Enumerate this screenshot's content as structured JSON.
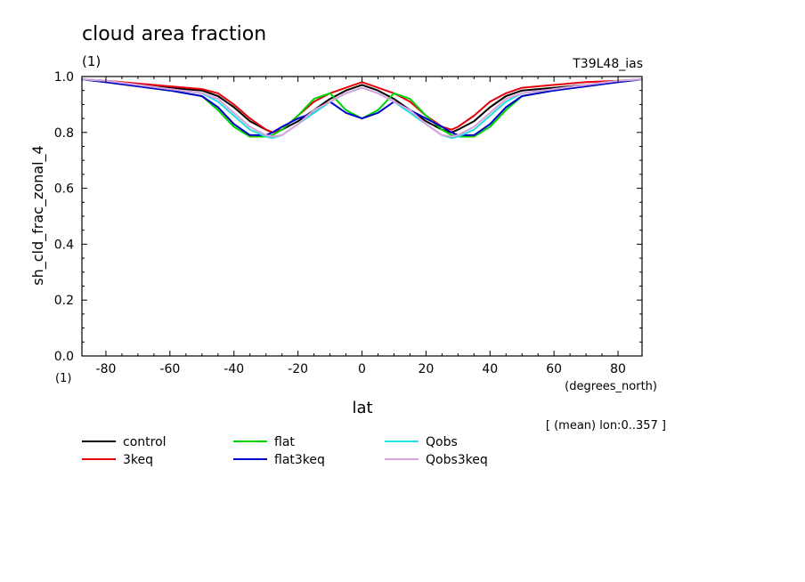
{
  "chart_data": {
    "type": "line",
    "title": "cloud area fraction",
    "units_label": "(1)",
    "run_label": "T39L48_ias",
    "xlabel": "lat",
    "x_units": "(degrees_north)",
    "ylabel": "sh_cld_frac_zonal_4",
    "y_units": "(1)",
    "footnote": "[ (mean) lon:0..357 ]",
    "xlim": [
      -87.5,
      87.5
    ],
    "ylim": [
      0.0,
      1.0
    ],
    "x_ticks": [
      -80,
      -60,
      -40,
      -20,
      0,
      20,
      40,
      60,
      80
    ],
    "x_tick_labels": [
      "-80",
      "-60",
      "-40",
      "-20",
      "0",
      "20",
      "40",
      "60",
      "80"
    ],
    "y_ticks": [
      0.0,
      0.2,
      0.4,
      0.6,
      0.8,
      1.0
    ],
    "y_tick_labels": [
      "0.0",
      "0.2",
      "0.4",
      "0.6",
      "0.8",
      "1.0"
    ],
    "legend_placement": "bottom",
    "x": [
      -87.5,
      -80,
      -70,
      -60,
      -50,
      -45,
      -40,
      -35,
      -30,
      -28,
      -25,
      -20,
      -15,
      -10,
      -5,
      0,
      5,
      10,
      15,
      20,
      25,
      28,
      30,
      35,
      40,
      45,
      50,
      60,
      70,
      80,
      87.5
    ],
    "series": [
      {
        "name": "control",
        "color": "#000000",
        "values": [
          0.99,
          0.98,
          0.97,
          0.96,
          0.95,
          0.93,
          0.89,
          0.84,
          0.81,
          0.8,
          0.81,
          0.84,
          0.88,
          0.92,
          0.95,
          0.97,
          0.95,
          0.92,
          0.88,
          0.84,
          0.81,
          0.8,
          0.81,
          0.84,
          0.89,
          0.93,
          0.95,
          0.96,
          0.97,
          0.98,
          0.99
        ]
      },
      {
        "name": "3keq",
        "color": "#e8000b",
        "values": [
          0.99,
          0.985,
          0.975,
          0.965,
          0.955,
          0.94,
          0.9,
          0.85,
          0.81,
          0.8,
          0.81,
          0.86,
          0.91,
          0.94,
          0.96,
          0.98,
          0.96,
          0.94,
          0.91,
          0.86,
          0.82,
          0.81,
          0.82,
          0.86,
          0.91,
          0.94,
          0.96,
          0.97,
          0.98,
          0.985,
          0.99
        ]
      },
      {
        "name": "flat",
        "color": "#00d400",
        "values": [
          0.99,
          0.98,
          0.965,
          0.95,
          0.93,
          0.88,
          0.82,
          0.785,
          0.785,
          0.79,
          0.81,
          0.86,
          0.92,
          0.94,
          0.88,
          0.85,
          0.88,
          0.94,
          0.92,
          0.86,
          0.81,
          0.79,
          0.785,
          0.785,
          0.82,
          0.88,
          0.93,
          0.95,
          0.965,
          0.98,
          0.99
        ]
      },
      {
        "name": "flat3keq",
        "color": "#0000cc",
        "values": [
          0.99,
          0.98,
          0.965,
          0.95,
          0.93,
          0.89,
          0.83,
          0.79,
          0.79,
          0.8,
          0.82,
          0.85,
          0.87,
          0.91,
          0.87,
          0.85,
          0.87,
          0.91,
          0.88,
          0.85,
          0.82,
          0.8,
          0.79,
          0.79,
          0.83,
          0.89,
          0.93,
          0.95,
          0.965,
          0.98,
          0.99
        ]
      },
      {
        "name": "Qobs",
        "color": "#22e0e0",
        "values": [
          0.99,
          0.985,
          0.97,
          0.955,
          0.94,
          0.91,
          0.86,
          0.81,
          0.785,
          0.78,
          0.79,
          0.83,
          0.87,
          0.91,
          0.94,
          0.96,
          0.94,
          0.91,
          0.87,
          0.83,
          0.79,
          0.78,
          0.785,
          0.81,
          0.86,
          0.91,
          0.94,
          0.955,
          0.97,
          0.985,
          0.99
        ]
      },
      {
        "name": "Qobs3keq",
        "color": "#dca0dc",
        "values": [
          0.99,
          0.985,
          0.97,
          0.955,
          0.94,
          0.92,
          0.87,
          0.82,
          0.79,
          0.785,
          0.79,
          0.83,
          0.88,
          0.91,
          0.94,
          0.96,
          0.94,
          0.91,
          0.88,
          0.83,
          0.79,
          0.785,
          0.79,
          0.82,
          0.87,
          0.92,
          0.94,
          0.955,
          0.97,
          0.985,
          0.99
        ]
      }
    ]
  }
}
